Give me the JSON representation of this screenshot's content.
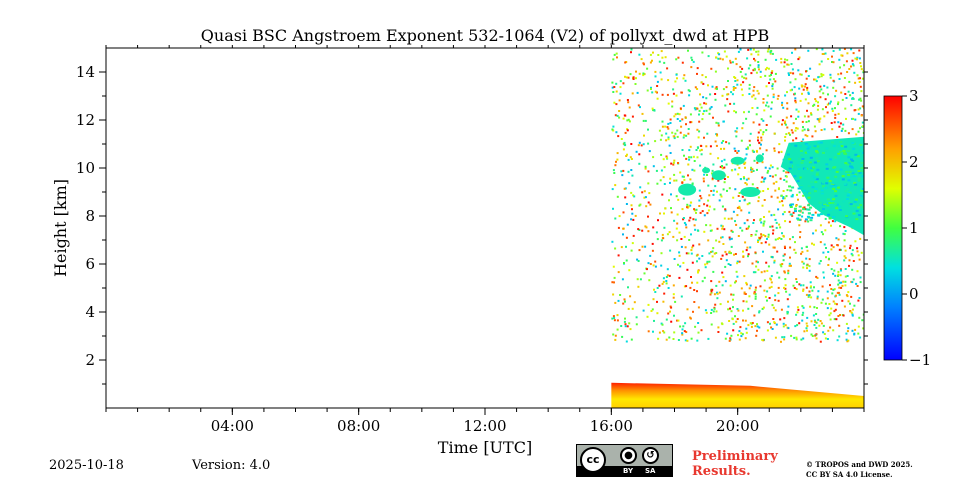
{
  "chart_data": {
    "type": "heatmap",
    "title": "Quasi BSC Angstroem Exponent 532-1064 (V2) of pollyxt_dwd at HPB",
    "xlabel": "Time [UTC]",
    "ylabel": "Height [km]",
    "xlim_hours": [
      0,
      24
    ],
    "ylim_km": [
      0,
      15
    ],
    "x_ticks": [
      {
        "value": 4,
        "label": "04:00"
      },
      {
        "value": 8,
        "label": "08:00"
      },
      {
        "value": 12,
        "label": "12:00"
      },
      {
        "value": 16,
        "label": "16:00"
      },
      {
        "value": 20,
        "label": "20:00"
      }
    ],
    "y_ticks": [
      {
        "value": 2,
        "label": "2"
      },
      {
        "value": 4,
        "label": "4"
      },
      {
        "value": 6,
        "label": "6"
      },
      {
        "value": 8,
        "label": "8"
      },
      {
        "value": 10,
        "label": "10"
      },
      {
        "value": 12,
        "label": "12"
      },
      {
        "value": 14,
        "label": "14"
      }
    ],
    "colorbar": {
      "range": [
        -1,
        3
      ],
      "ticks": [
        {
          "value": -1,
          "label": "−1"
        },
        {
          "value": 0,
          "label": "0"
        },
        {
          "value": 1,
          "label": "1"
        },
        {
          "value": 2,
          "label": "2"
        },
        {
          "value": 3,
          "label": "3"
        }
      ],
      "colormap": "jet",
      "position": "right"
    },
    "regions": [
      {
        "kind": "boundary-layer",
        "x_start": 16.0,
        "x_end": 24.0,
        "y_bottom": 0.0,
        "y_top_start": 1.05,
        "y_top_end": 0.5,
        "value_low": 1.7,
        "value_high": 2.4
      },
      {
        "kind": "cirrus",
        "x_start": 21.3,
        "x_end": 24.0,
        "y_bottom": 7.2,
        "y_top": 11.3,
        "value": 0.55
      },
      {
        "kind": "cirrus-patches",
        "x_start": 18.2,
        "x_end": 21.0,
        "y_bottom": 8.5,
        "y_top": 10.6,
        "value": 0.6
      },
      {
        "kind": "noise",
        "x_start": 16.0,
        "x_end": 24.0,
        "y_bottom": 2.8,
        "y_top": 15.0,
        "value_range": [
          -1,
          3
        ]
      }
    ]
  },
  "footer": {
    "date": "2025-10-18",
    "version": "Version: 4.0",
    "license_badge": {
      "cc": "cc",
      "by": "BY",
      "sa": "SA"
    },
    "preliminary": [
      "Preliminary",
      "Results."
    ],
    "copyright": [
      "© TROPOS and DWD 2025.",
      "CC BY SA 4.0 License."
    ]
  }
}
